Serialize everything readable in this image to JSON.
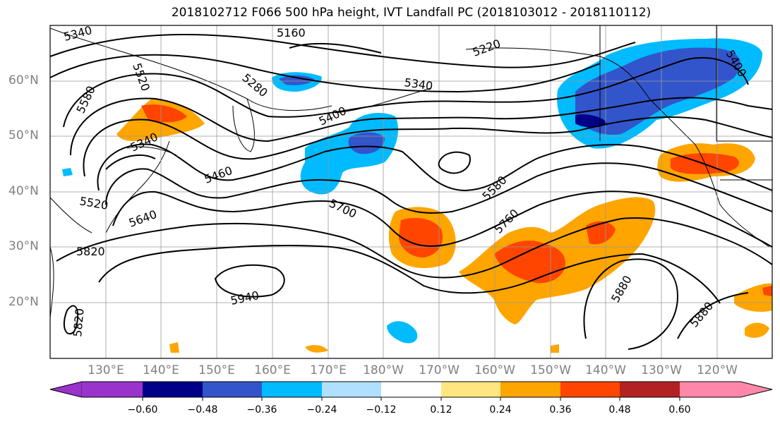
{
  "title": "2018102712 F066 500 hPa height, IVT Landfall PC (2018103012 - 2018110112)",
  "latitude_labels": [
    "60°N",
    "50°N",
    "40°N",
    "30°N",
    "20°N"
  ],
  "longitude_labels": [
    "130°E",
    "140°E",
    "150°E",
    "160°E",
    "170°E",
    "180°W",
    "170°W",
    "160°W",
    "150°W",
    "140°W",
    "130°W",
    "120°W"
  ],
  "contour_labels": [
    "5340",
    "5160",
    "5220",
    "5520",
    "5580",
    "5280",
    "5340",
    "5400",
    "5340",
    "5460",
    "5520",
    "5640",
    "5700",
    "5580",
    "5760",
    "5820",
    "5940",
    "5820",
    "5880",
    "5880",
    "5400"
  ],
  "colorbar": {
    "tick_labels": [
      "−0.60",
      "−0.48",
      "−0.36",
      "−0.24",
      "−0.12",
      "0.12",
      "0.24",
      "0.36",
      "0.48",
      "0.60"
    ],
    "colors": [
      "#9933cc",
      "#000088",
      "#3355cc",
      "#00bbff",
      "#b0e0ff",
      "#ffffff",
      "#ffe680",
      "#ffa500",
      "#ff4500",
      "#b22222",
      "#ff88aa"
    ]
  },
  "colors": {
    "negative_strong": "#000088",
    "negative_mid": "#3355cc",
    "negative_weak": "#00bbff",
    "positive_weak": "#ffa500",
    "positive_mid": "#ff4500",
    "contour": "#000000",
    "gridline": "#999999"
  }
}
